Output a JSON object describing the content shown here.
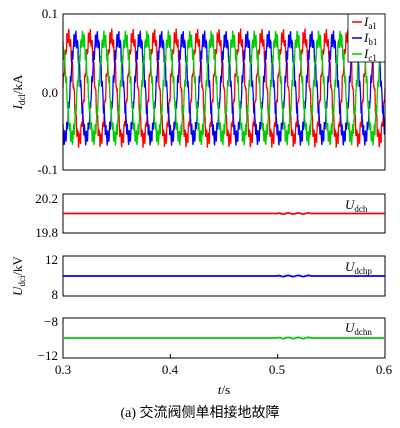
{
  "chart_data": [
    {
      "type": "line",
      "panel": "top",
      "ylabel": {
        "main": "I",
        "sub": "dcl",
        "unit": "/kA"
      },
      "xlim": [
        0.3,
        0.6
      ],
      "ylim": [
        -0.1,
        0.1
      ],
      "yticks": [
        "0.1",
        "0.0",
        "-0.1"
      ],
      "legend_position": "top-right",
      "series": [
        {
          "name": "I",
          "sub": "a1",
          "color": "#ff0000",
          "amplitude_min": -0.06,
          "amplitude_max": 0.07,
          "frequency_hz": 50,
          "phase_deg": 0
        },
        {
          "name": "I",
          "sub": "b1",
          "color": "#0000ff",
          "amplitude_min": -0.06,
          "amplitude_max": 0.07,
          "frequency_hz": 50,
          "phase_deg": -120
        },
        {
          "name": "I",
          "sub": "c1",
          "color": "#00cc00",
          "amplitude_min": -0.06,
          "amplitude_max": 0.07,
          "frequency_hz": 50,
          "phase_deg": 120
        }
      ]
    },
    {
      "type": "line",
      "panel": "ch",
      "ylim": [
        19.8,
        20.2
      ],
      "yticks": [
        "20.2",
        "19.8"
      ],
      "series": [
        {
          "name": "U",
          "sub": "dch",
          "color": "#ff0000",
          "value": 20.0
        }
      ]
    },
    {
      "type": "line",
      "panel": "chp",
      "ylim": [
        8,
        12
      ],
      "yticks": [
        "12",
        "8"
      ],
      "series": [
        {
          "name": "U",
          "sub": "dchp",
          "color": "#0000ff",
          "value": 10.0
        }
      ]
    },
    {
      "type": "line",
      "panel": "chn",
      "ylim": [
        -12,
        -8
      ],
      "yticks": [
        "−8",
        "−12"
      ],
      "series": [
        {
          "name": "U",
          "sub": "dchn",
          "color": "#00cc00",
          "value": -10.0
        }
      ]
    }
  ],
  "shared_ylabel": {
    "main": "U",
    "sub": "dci",
    "unit": "/kV"
  },
  "xaxis": {
    "label": "t",
    "unit": "/s",
    "ticks": [
      "0.3",
      "0.4",
      "0.5",
      "0.6"
    ]
  },
  "caption": "(a)  交流阀侧单相接地故障"
}
